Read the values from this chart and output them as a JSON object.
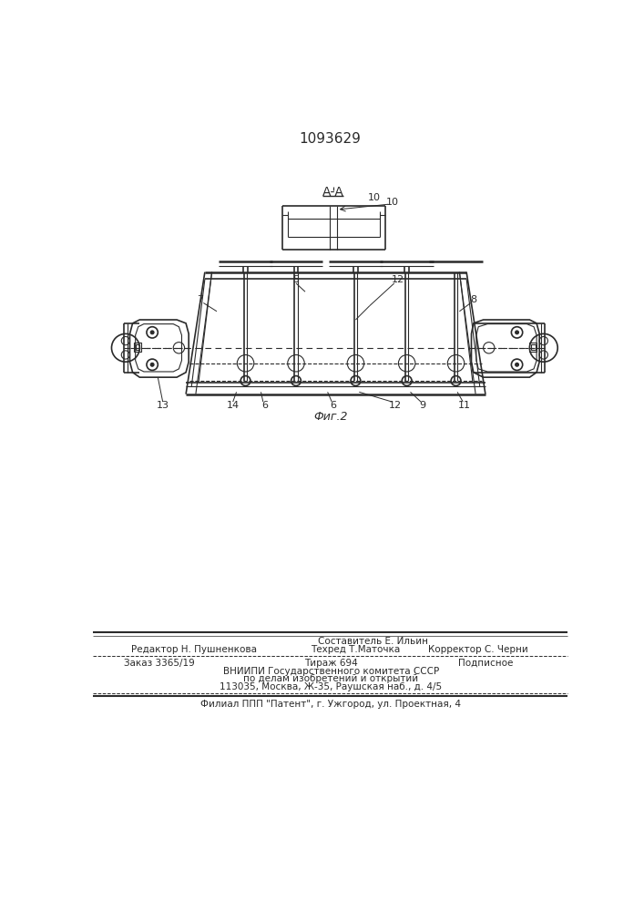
{
  "patent_number": "1093629",
  "bg_color": "#ffffff",
  "line_color": "#2a2a2a",
  "footer": {
    "line1": "Составитель Е. Ильин",
    "line2_left": "Редактор Н. Пушненкова",
    "line2_mid": "Техред Т.Маточка",
    "line2_right": "Корректор С. Черни",
    "line3_left": "Заказ 3365/19",
    "line3_mid": "Тираж 694",
    "line3_right": "Подписное",
    "line4": "ВНИИПИ Государственного комитета СССР",
    "line5": "по делам изобретений и открытий",
    "line6": "113035, Москва, Ж-35, Раушская наб., д. 4/5",
    "line7": "Филиал ППП \"Патент\", г. Ужгород, ул. Проектная, 4"
  }
}
